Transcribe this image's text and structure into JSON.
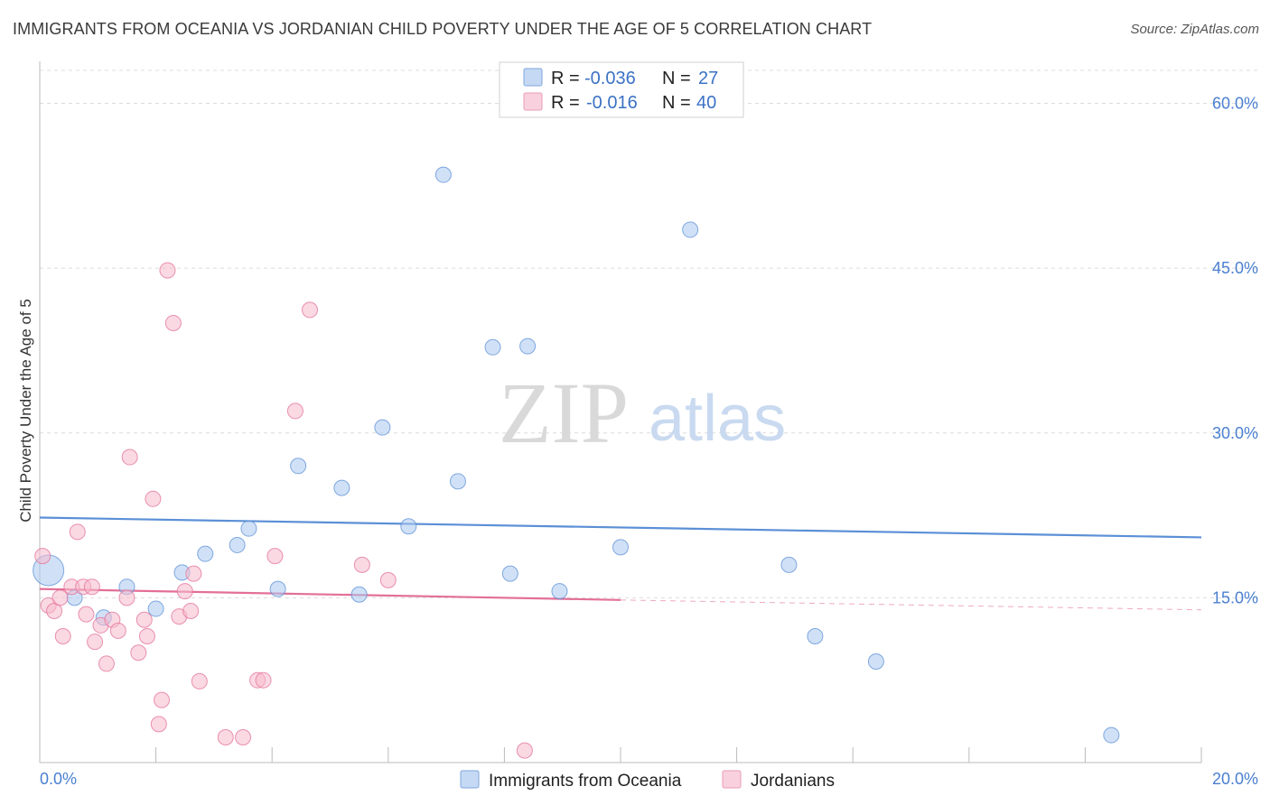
{
  "header": {
    "title": "IMMIGRANTS FROM OCEANIA VS JORDANIAN CHILD POVERTY UNDER THE AGE OF 5 CORRELATION CHART",
    "source": "Source: ZipAtlas.com"
  },
  "watermark": {
    "zip": "ZIP",
    "atlas": "atlas"
  },
  "legend_top": {
    "rows": [
      {
        "r_label": "R =",
        "r_value": "-0.036",
        "n_label": "N =",
        "n_value": "27",
        "color": "#a9c8f0"
      },
      {
        "r_label": "R =",
        "r_value": "-0.016",
        "n_label": "N =",
        "n_value": "40",
        "color": "#f5b9cc"
      }
    ]
  },
  "legend_bottom": {
    "items": [
      {
        "label": "Immigrants from Oceania",
        "color": "#a9c8f0"
      },
      {
        "label": "Jordanians",
        "color": "#f5b9cc"
      }
    ]
  },
  "chart_data": {
    "type": "scatter",
    "title": "IMMIGRANTS FROM OCEANIA VS JORDANIAN CHILD POVERTY UNDER THE AGE OF 5 CORRELATION CHART",
    "xlabel": "",
    "ylabel": "Child Poverty Under the Age of 5",
    "xlim": [
      0,
      20
    ],
    "ylim": [
      0,
      63
    ],
    "x_tick_labels": [
      "0.0%",
      "20.0%"
    ],
    "y_ticks": [
      15,
      30,
      45,
      60
    ],
    "y_tick_labels": [
      "15.0%",
      "30.0%",
      "45.0%",
      "60.0%"
    ],
    "grid": true,
    "legend_position": "top-center",
    "series": [
      {
        "name": "Immigrants from Oceania",
        "color": "#5b8fd6",
        "fill": "#a9c8f0",
        "trend": {
          "x": [
            0,
            20
          ],
          "y": [
            22.3,
            20.5
          ]
        },
        "points": [
          [
            0.15,
            17.5
          ],
          [
            0.6,
            15.0
          ],
          [
            1.1,
            13.2
          ],
          [
            1.5,
            16.0
          ],
          [
            2.0,
            14.0
          ],
          [
            2.45,
            17.3
          ],
          [
            2.85,
            19.0
          ],
          [
            3.4,
            19.8
          ],
          [
            3.6,
            21.3
          ],
          [
            4.1,
            15.8
          ],
          [
            4.45,
            27.0
          ],
          [
            5.2,
            25.0
          ],
          [
            5.5,
            15.3
          ],
          [
            5.9,
            30.5
          ],
          [
            6.35,
            21.5
          ],
          [
            6.95,
            53.5
          ],
          [
            7.2,
            25.6
          ],
          [
            7.8,
            37.8
          ],
          [
            8.1,
            17.2
          ],
          [
            8.4,
            37.9
          ],
          [
            8.95,
            15.6
          ],
          [
            10.0,
            19.6
          ],
          [
            11.2,
            48.5
          ],
          [
            12.9,
            18.0
          ],
          [
            13.35,
            11.5
          ],
          [
            14.4,
            9.2
          ],
          [
            18.45,
            2.5
          ]
        ]
      },
      {
        "name": "Jordanians",
        "color": "#e36f98",
        "fill": "#f5b9cc",
        "trend": {
          "x": [
            0,
            10
          ],
          "y": [
            15.8,
            14.8
          ]
        },
        "trend_extension": {
          "x": [
            10,
            20
          ],
          "y": [
            14.8,
            13.9
          ]
        },
        "points": [
          [
            0.05,
            18.8
          ],
          [
            0.15,
            14.3
          ],
          [
            0.25,
            13.8
          ],
          [
            0.35,
            15.0
          ],
          [
            0.4,
            11.5
          ],
          [
            0.55,
            16.0
          ],
          [
            0.65,
            21.0
          ],
          [
            0.75,
            16.0
          ],
          [
            0.8,
            13.5
          ],
          [
            0.9,
            16.0
          ],
          [
            0.95,
            11.0
          ],
          [
            1.05,
            12.5
          ],
          [
            1.15,
            9.0
          ],
          [
            1.25,
            13.0
          ],
          [
            1.35,
            12.0
          ],
          [
            1.5,
            15.0
          ],
          [
            1.55,
            27.8
          ],
          [
            1.7,
            10.0
          ],
          [
            1.8,
            13.0
          ],
          [
            1.85,
            11.5
          ],
          [
            1.95,
            24.0
          ],
          [
            2.05,
            3.5
          ],
          [
            2.1,
            5.7
          ],
          [
            2.2,
            44.8
          ],
          [
            2.3,
            40.0
          ],
          [
            2.4,
            13.3
          ],
          [
            2.5,
            15.6
          ],
          [
            2.6,
            13.8
          ],
          [
            2.65,
            17.2
          ],
          [
            2.75,
            7.4
          ],
          [
            3.2,
            2.3
          ],
          [
            3.5,
            2.3
          ],
          [
            3.75,
            7.5
          ],
          [
            3.85,
            7.5
          ],
          [
            4.05,
            18.8
          ],
          [
            4.4,
            32.0
          ],
          [
            4.65,
            41.2
          ],
          [
            5.55,
            18.0
          ],
          [
            6.0,
            16.6
          ],
          [
            8.35,
            1.1
          ]
        ]
      }
    ]
  }
}
